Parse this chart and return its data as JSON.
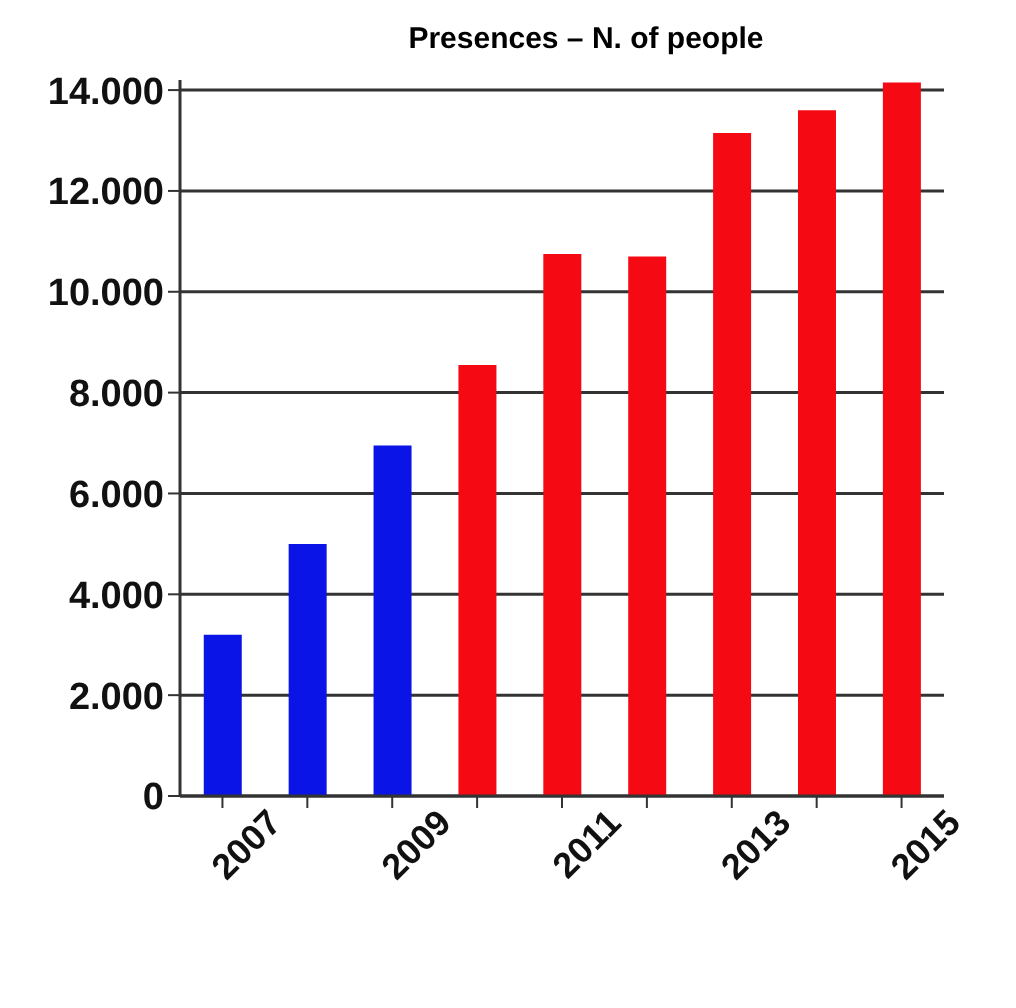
{
  "chart_data": {
    "type": "bar",
    "title": "Presences – N. of people",
    "categories": [
      "2007",
      null,
      "2009",
      null,
      "2011",
      null,
      "2013",
      null,
      "2015"
    ],
    "values": [
      3200,
      5000,
      6950,
      8550,
      10750,
      10700,
      13150,
      13600,
      14150
    ],
    "colors": [
      "#0a14e6",
      "#0a14e6",
      "#0a14e6",
      "#f50a14",
      "#f50a14",
      "#f50a14",
      "#f50a14",
      "#f50a14",
      "#f50a14"
    ],
    "ylim": [
      0,
      14200
    ],
    "yticks": [
      0,
      {
        "value": 2000,
        "label": "2.000"
      },
      {
        "value": 4000,
        "label": "4.000"
      },
      {
        "value": 6000,
        "label": "6.000"
      },
      {
        "value": 8000,
        "label": "8.000"
      },
      {
        "value": 10000,
        "label": "10.000"
      },
      {
        "value": 12000,
        "label": "12.000"
      },
      {
        "value": 14000,
        "label": "14.000"
      }
    ],
    "grid": "y"
  }
}
